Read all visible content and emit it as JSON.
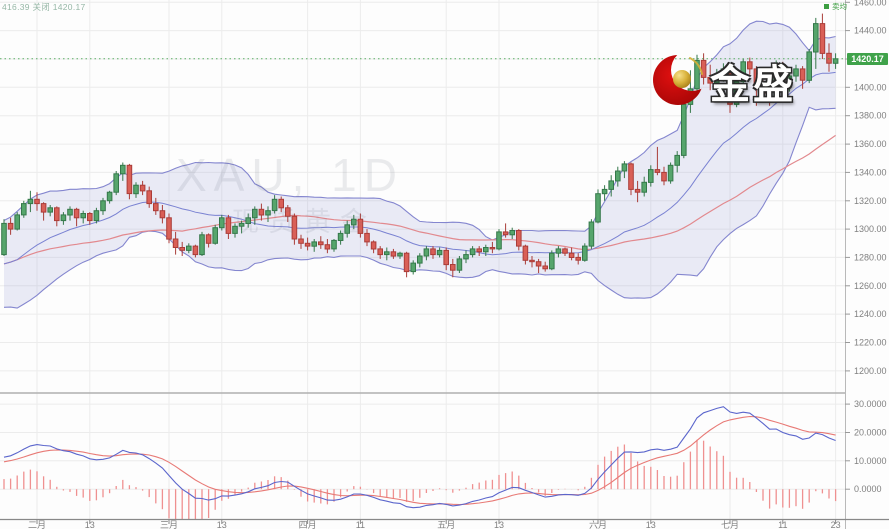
{
  "info_bar": {
    "text": "416.39 关闭 1420.17"
  },
  "legend": {
    "label": "卖均",
    "color": "#3c9e41"
  },
  "watermark": {
    "symbol": "XAU, 1D",
    "subtitle": "现货黄金",
    "brand": "金盛"
  },
  "price_tag": {
    "value": "1420.17"
  },
  "chart_data": {
    "type": "candlestick",
    "title": "XAU, 1D",
    "subtitle": "现货黄金",
    "timeframe": "1D",
    "current_price": 1420.17,
    "y_axis": {
      "ticks": [
        1460,
        1440,
        1420,
        1400,
        1380,
        1360,
        1340,
        1320,
        1300,
        1280,
        1260,
        1240,
        1220,
        1200
      ],
      "format": "0.00"
    },
    "macd_axis": {
      "ticks": [
        30,
        20,
        10,
        0
      ],
      "format": "0.0000"
    },
    "x_ticks": [
      {
        "label": "二月",
        "i": 5
      },
      {
        "label": "13",
        "i": 13
      },
      {
        "label": "三月",
        "i": 25
      },
      {
        "label": "13",
        "i": 33
      },
      {
        "label": "四月",
        "i": 46
      },
      {
        "label": "11",
        "i": 54
      },
      {
        "label": "五月",
        "i": 67
      },
      {
        "label": "13",
        "i": 75
      },
      {
        "label": "六月",
        "i": 90
      },
      {
        "label": "13",
        "i": 98
      },
      {
        "label": "七月",
        "i": 110
      },
      {
        "label": "11",
        "i": 118
      },
      {
        "label": "23",
        "i": 126
      }
    ],
    "overlays": {
      "bollinger_period": 20,
      "bollinger_dev": 2,
      "slow_ma_period": 45,
      "macd": [
        12,
        26,
        9
      ]
    },
    "colors": {
      "up_fill": "#56a56c",
      "up_stroke": "#35784a",
      "down_fill": "#d95f57",
      "down_stroke": "#aa3c38",
      "band_line": "#8486cf",
      "band_fill": "rgba(132,134,207,0.16)",
      "sma_fast": "#7a82d2",
      "sma_slow": "#e2898e",
      "macd_dif": "#5b66cc",
      "macd_dea": "#e87a76",
      "macd_hist": "#ef9090",
      "grid": "#ececec",
      "axis_text": "#808080",
      "price_line": "#3fa24a",
      "border": "#b9b9b9"
    },
    "warmup_closes": [
      1246,
      1250,
      1255,
      1259,
      1263,
      1268,
      1272,
      1275,
      1279,
      1283,
      1287,
      1285,
      1289,
      1292,
      1287,
      1281,
      1283
    ],
    "candles": [
      [
        1282,
        1307,
        1281,
        1304
      ],
      [
        1304,
        1308,
        1296,
        1300
      ],
      [
        1300,
        1312,
        1299,
        1310
      ],
      [
        1310,
        1320,
        1308,
        1318
      ],
      [
        1318,
        1327,
        1312,
        1321
      ],
      [
        1321,
        1326,
        1313,
        1318
      ],
      [
        1318,
        1319,
        1306,
        1312
      ],
      [
        1312,
        1317,
        1309,
        1315
      ],
      [
        1315,
        1316,
        1302,
        1306
      ],
      [
        1306,
        1312,
        1303,
        1310
      ],
      [
        1310,
        1316,
        1306,
        1314
      ],
      [
        1314,
        1315,
        1302,
        1308
      ],
      [
        1308,
        1313,
        1304,
        1311
      ],
      [
        1311,
        1312,
        1303,
        1306
      ],
      [
        1306,
        1315,
        1304,
        1313
      ],
      [
        1313,
        1322,
        1310,
        1320
      ],
      [
        1320,
        1327,
        1318,
        1326
      ],
      [
        1326,
        1341,
        1324,
        1339
      ],
      [
        1339,
        1347,
        1334,
        1345
      ],
      [
        1345,
        1346,
        1321,
        1325
      ],
      [
        1325,
        1333,
        1322,
        1331
      ],
      [
        1331,
        1334,
        1324,
        1327
      ],
      [
        1327,
        1330,
        1315,
        1318
      ],
      [
        1318,
        1322,
        1310,
        1313
      ],
      [
        1313,
        1317,
        1304,
        1308
      ],
      [
        1308,
        1311,
        1290,
        1293
      ],
      [
        1293,
        1298,
        1282,
        1287
      ],
      [
        1287,
        1291,
        1281,
        1285
      ],
      [
        1285,
        1290,
        1283,
        1288
      ],
      [
        1288,
        1289,
        1280,
        1282
      ],
      [
        1282,
        1298,
        1281,
        1296
      ],
      [
        1296,
        1297,
        1287,
        1290
      ],
      [
        1290,
        1303,
        1289,
        1301
      ],
      [
        1301,
        1310,
        1299,
        1308
      ],
      [
        1308,
        1310,
        1293,
        1297
      ],
      [
        1297,
        1304,
        1294,
        1302
      ],
      [
        1302,
        1306,
        1297,
        1304
      ],
      [
        1304,
        1311,
        1301,
        1308
      ],
      [
        1308,
        1316,
        1303,
        1314
      ],
      [
        1314,
        1318,
        1306,
        1310
      ],
      [
        1310,
        1316,
        1305,
        1313
      ],
      [
        1313,
        1324,
        1311,
        1321
      ],
      [
        1321,
        1323,
        1312,
        1315
      ],
      [
        1315,
        1317,
        1305,
        1309
      ],
      [
        1309,
        1311,
        1289,
        1293
      ],
      [
        1293,
        1296,
        1286,
        1290
      ],
      [
        1290,
        1294,
        1285,
        1288
      ],
      [
        1288,
        1293,
        1284,
        1291
      ],
      [
        1291,
        1295,
        1286,
        1289
      ],
      [
        1289,
        1293,
        1283,
        1286
      ],
      [
        1286,
        1293,
        1284,
        1292
      ],
      [
        1292,
        1299,
        1289,
        1297
      ],
      [
        1297,
        1306,
        1294,
        1303
      ],
      [
        1303,
        1310,
        1300,
        1307
      ],
      [
        1307,
        1311,
        1294,
        1297
      ],
      [
        1297,
        1300,
        1288,
        1291
      ],
      [
        1291,
        1292,
        1283,
        1286
      ],
      [
        1286,
        1288,
        1279,
        1282
      ],
      [
        1282,
        1287,
        1278,
        1284
      ],
      [
        1284,
        1286,
        1279,
        1281
      ],
      [
        1281,
        1284,
        1279,
        1283
      ],
      [
        1283,
        1284,
        1266,
        1270
      ],
      [
        1270,
        1278,
        1268,
        1276
      ],
      [
        1276,
        1283,
        1273,
        1281
      ],
      [
        1281,
        1288,
        1278,
        1286
      ],
      [
        1286,
        1288,
        1279,
        1282
      ],
      [
        1282,
        1287,
        1280,
        1285
      ],
      [
        1285,
        1287,
        1271,
        1275
      ],
      [
        1275,
        1279,
        1266,
        1271
      ],
      [
        1271,
        1281,
        1269,
        1279
      ],
      [
        1279,
        1285,
        1276,
        1282
      ],
      [
        1282,
        1288,
        1280,
        1286
      ],
      [
        1286,
        1288,
        1281,
        1284
      ],
      [
        1284,
        1289,
        1281,
        1287
      ],
      [
        1287,
        1291,
        1283,
        1286
      ],
      [
        1286,
        1300,
        1285,
        1298
      ],
      [
        1298,
        1304,
        1294,
        1296
      ],
      [
        1296,
        1301,
        1293,
        1299
      ],
      [
        1299,
        1300,
        1285,
        1288
      ],
      [
        1288,
        1289,
        1275,
        1278
      ],
      [
        1278,
        1281,
        1273,
        1277
      ],
      [
        1277,
        1279,
        1269,
        1274
      ],
      [
        1274,
        1277,
        1270,
        1272
      ],
      [
        1272,
        1285,
        1271,
        1283
      ],
      [
        1283,
        1288,
        1280,
        1286
      ],
      [
        1286,
        1287,
        1281,
        1283
      ],
      [
        1283,
        1287,
        1278,
        1280
      ],
      [
        1280,
        1283,
        1275,
        1278
      ],
      [
        1278,
        1290,
        1277,
        1288
      ],
      [
        1288,
        1307,
        1286,
        1305
      ],
      [
        1305,
        1328,
        1304,
        1325
      ],
      [
        1325,
        1331,
        1320,
        1328
      ],
      [
        1328,
        1338,
        1323,
        1334
      ],
      [
        1334,
        1344,
        1330,
        1341
      ],
      [
        1341,
        1348,
        1336,
        1346
      ],
      [
        1346,
        1347,
        1324,
        1328
      ],
      [
        1328,
        1334,
        1319,
        1326
      ],
      [
        1326,
        1337,
        1323,
        1333
      ],
      [
        1333,
        1345,
        1330,
        1342
      ],
      [
        1342,
        1358,
        1338,
        1340
      ],
      [
        1340,
        1344,
        1331,
        1334
      ],
      [
        1334,
        1347,
        1332,
        1345
      ],
      [
        1345,
        1355,
        1340,
        1352
      ],
      [
        1352,
        1394,
        1350,
        1388
      ],
      [
        1388,
        1412,
        1382,
        1399
      ],
      [
        1399,
        1423,
        1396,
        1419
      ],
      [
        1419,
        1424,
        1402,
        1407
      ],
      [
        1407,
        1416,
        1398,
        1403
      ],
      [
        1403,
        1413,
        1399,
        1409
      ],
      [
        1409,
        1417,
        1404,
        1413
      ],
      [
        1413,
        1414,
        1382,
        1388
      ],
      [
        1388,
        1407,
        1386,
        1404
      ],
      [
        1404,
        1420,
        1401,
        1418
      ],
      [
        1418,
        1421,
        1409,
        1413
      ],
      [
        1413,
        1415,
        1387,
        1399
      ],
      [
        1399,
        1405,
        1391,
        1396
      ],
      [
        1396,
        1400,
        1387,
        1392
      ],
      [
        1392,
        1419,
        1390,
        1416
      ],
      [
        1416,
        1418,
        1398,
        1403
      ],
      [
        1403,
        1412,
        1397,
        1408
      ],
      [
        1408,
        1416,
        1404,
        1413
      ],
      [
        1413,
        1415,
        1399,
        1405
      ],
      [
        1405,
        1427,
        1403,
        1425
      ],
      [
        1425,
        1449,
        1413,
        1445
      ],
      [
        1445,
        1452,
        1420,
        1424
      ],
      [
        1424,
        1431,
        1411,
        1417
      ],
      [
        1417,
        1424,
        1413,
        1420.17
      ]
    ]
  }
}
